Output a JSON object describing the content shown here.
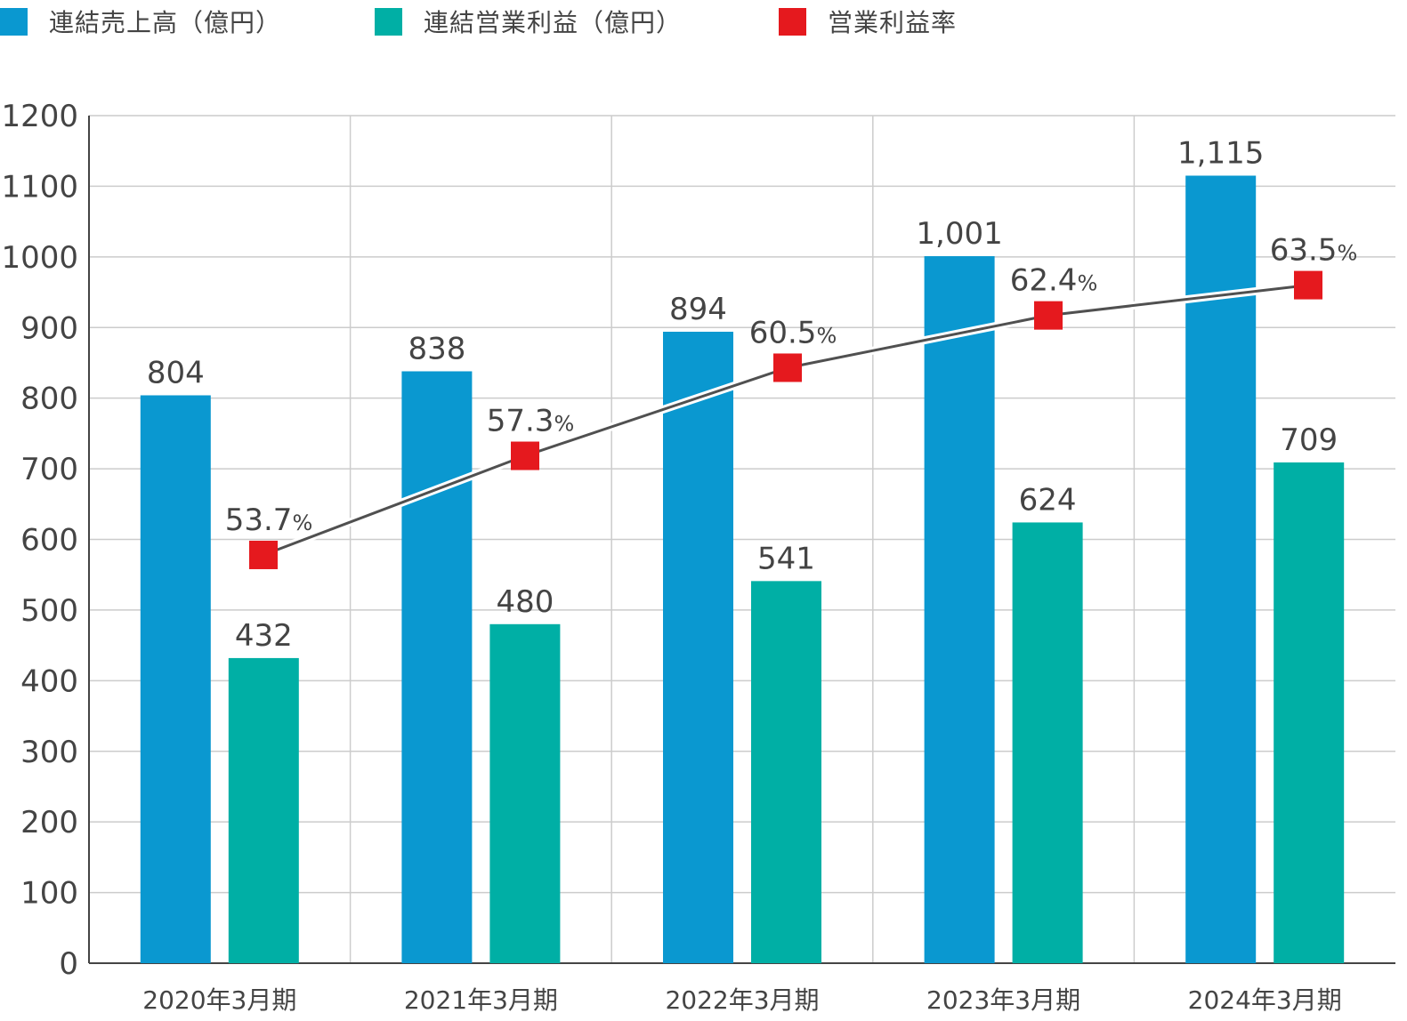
{
  "legend": [
    {
      "label": "連結売上高（億円）",
      "color": "#0a98d0"
    },
    {
      "label": "連結営業利益（億円）",
      "color": "#00afa5"
    },
    {
      "label": "営業利益率",
      "color": "#e5191e"
    }
  ],
  "chart_data": {
    "type": "bar",
    "categories": [
      "2020年3月期",
      "2021年3月期",
      "2022年3月期",
      "2023年3月期",
      "2024年3月期"
    ],
    "series": [
      {
        "name": "連結売上高（億円）",
        "values": [
          804,
          838,
          894,
          1001,
          1115
        ],
        "labels": [
          "804",
          "838",
          "894",
          "1,001",
          "1,115"
        ],
        "color": "#0a98d0"
      },
      {
        "name": "連結営業利益（億円）",
        "values": [
          432,
          480,
          541,
          624,
          709
        ],
        "labels": [
          "432",
          "480",
          "541",
          "624",
          "709"
        ],
        "color": "#00afa5"
      }
    ],
    "line_series": {
      "name": "営業利益率",
      "type": "line",
      "unit": "%",
      "values": [
        53.7,
        57.3,
        60.5,
        62.4,
        63.5
      ],
      "labels": [
        "53.7",
        "57.3",
        "60.5",
        "62.4",
        "63.5"
      ],
      "color": "#e5191e"
    },
    "ylim": [
      0,
      1200
    ],
    "yticks": [
      0,
      100,
      200,
      300,
      400,
      500,
      600,
      700,
      800,
      900,
      1000,
      1100,
      1200
    ],
    "grid": true,
    "legend_position": "top-left"
  }
}
